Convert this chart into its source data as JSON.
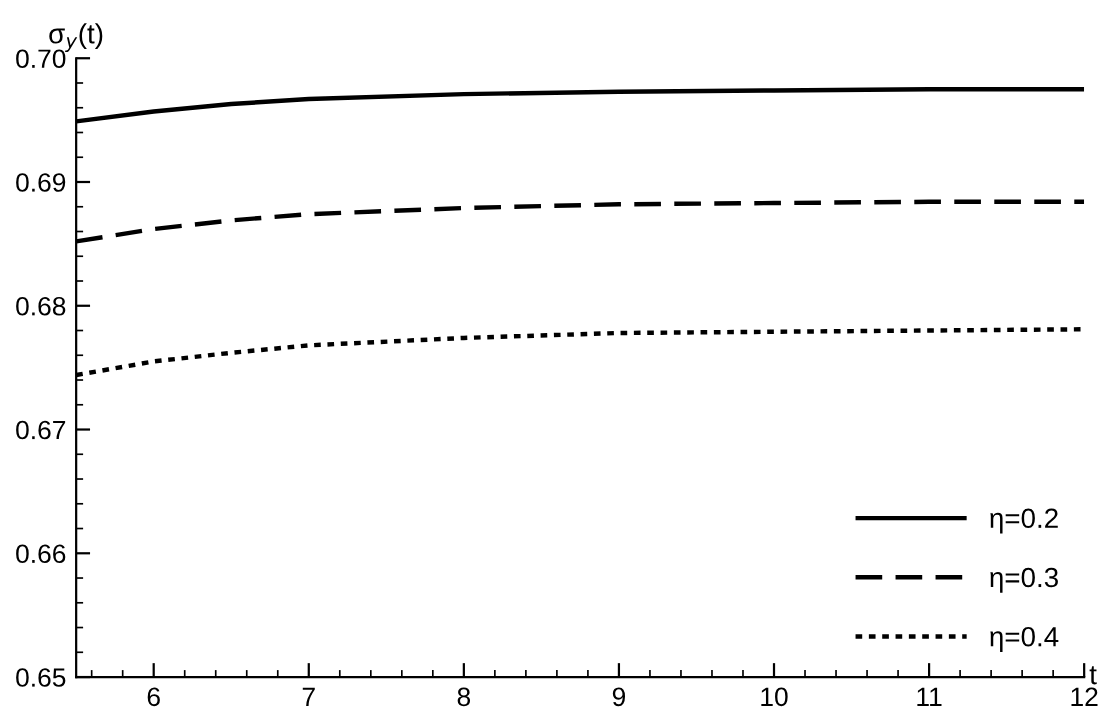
{
  "chart_data": {
    "type": "line",
    "xlabel": "t",
    "ylabel": "σ$_{y}$(t)",
    "x": [
      5.5,
      6,
      6.5,
      7,
      8,
      9,
      10,
      11,
      12
    ],
    "series": [
      {
        "name": "η=0.2",
        "color": "#000000",
        "line_style": "solid",
        "values": [
          0.6949,
          0.6957,
          0.6963,
          0.6967,
          0.6971,
          0.6973,
          0.6974,
          0.6975,
          0.6975
        ]
      },
      {
        "name": "η=0.3",
        "color": "#000000",
        "line_style": "dashed",
        "values": [
          0.6852,
          0.6862,
          0.6869,
          0.6874,
          0.6879,
          0.6882,
          0.6883,
          0.6884,
          0.6884
        ]
      },
      {
        "name": "η=0.4",
        "color": "#000000",
        "line_style": "dotted",
        "values": [
          0.6744,
          0.6755,
          0.6762,
          0.6768,
          0.6774,
          0.6778,
          0.6779,
          0.678,
          0.6781
        ]
      }
    ],
    "xlim": [
      5.5,
      12
    ],
    "xticks": [
      6,
      7,
      8,
      9,
      10,
      11,
      12
    ],
    "ylim": [
      0.65,
      0.7
    ],
    "yticks": [
      {
        "value": 0.65,
        "label": "0.65"
      },
      {
        "value": 0.66,
        "label": "0.66"
      },
      {
        "value": 0.67,
        "label": "0.67"
      },
      {
        "value": 0.68,
        "label": "0.68"
      },
      {
        "value": 0.69,
        "label": "0.69"
      },
      {
        "value": 0.7,
        "label": "0.70"
      }
    ],
    "grid": false,
    "legend": "bottom right",
    "marker": "none"
  }
}
